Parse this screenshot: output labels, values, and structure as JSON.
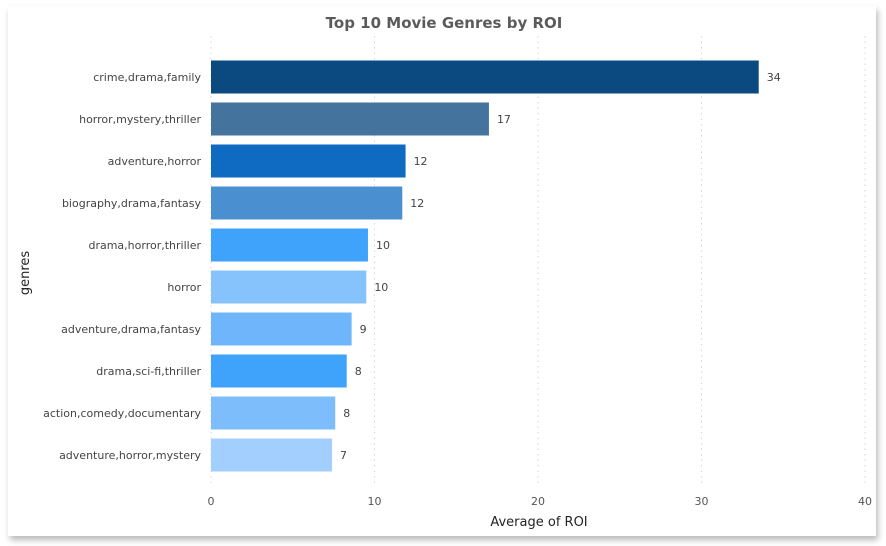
{
  "chart_data": {
    "type": "bar",
    "orientation": "horizontal",
    "title": "Top 10 Movie Genres by ROI",
    "xlabel": "Average of ROI",
    "ylabel": "genres",
    "categories": [
      "crime,drama,family",
      "horror,mystery,thriller",
      "adventure,horror",
      "biography,drama,fantasy",
      "drama,horror,thriller",
      "horror",
      "adventure,drama,fantasy",
      "drama,sci-fi,thriller",
      "action,comedy,documentary",
      "adventure,horror,mystery"
    ],
    "values": [
      33.5,
      17.0,
      11.9,
      11.7,
      9.6,
      9.5,
      8.6,
      8.3,
      7.6,
      7.4
    ],
    "data_labels": [
      "34",
      "17",
      "12",
      "12",
      "10",
      "10",
      "9",
      "8",
      "8",
      "7"
    ],
    "colors": [
      "#0b4a80",
      "#44739e",
      "#0f6ac2",
      "#4a90d0",
      "#3fa2fb",
      "#86c3fd",
      "#6fb5fc",
      "#3fa2fb",
      "#7ebdfc",
      "#a2cffd"
    ],
    "xlim": [
      0,
      40
    ],
    "xticks": [
      0,
      10,
      20,
      30,
      40
    ],
    "grid": true,
    "legend": "none"
  }
}
